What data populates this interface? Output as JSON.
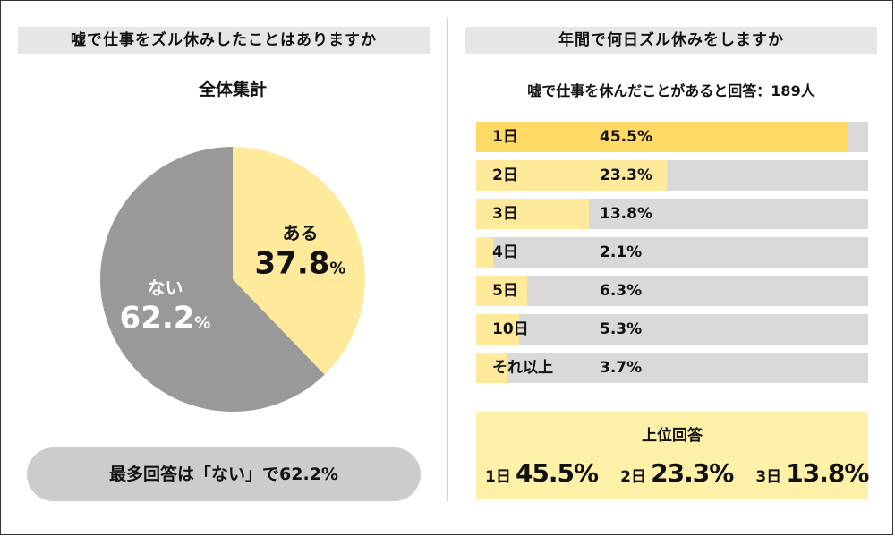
{
  "left_panel": {
    "header": "嘘で仕事をズル休みしたことはありますか",
    "subtitle": "全体集計",
    "summary": "最多回答は「ない」で62.2%"
  },
  "right_panel": {
    "header": "年間で何日ズル休みをしますか",
    "subtitle": "嘘で仕事を休んだことがあると回答：189人",
    "top_answers": {
      "title": "上位回答",
      "items": [
        {
          "day": "1日",
          "pct": "45.5%"
        },
        {
          "day": "2日",
          "pct": "23.3%"
        },
        {
          "day": "3日",
          "pct": "13.8%"
        }
      ]
    }
  },
  "colors": {
    "yes": "#ffe99b",
    "no": "#999999",
    "bar_top": "#ffd966",
    "bar_bg": "#d9d9d9"
  },
  "chart_data": [
    {
      "type": "pie",
      "title": "全体集計",
      "slices": [
        {
          "label": "ある",
          "value": 37.8,
          "display": "37.8",
          "unit": "%"
        },
        {
          "label": "ない",
          "value": 62.2,
          "display": "62.2",
          "unit": "%"
        }
      ]
    },
    {
      "type": "bar",
      "orientation": "horizontal",
      "title": "年間で何日ズル休みをしますか",
      "categories": [
        "1日",
        "2日",
        "3日",
        "4日",
        "5日",
        "10日",
        "それ以上"
      ],
      "values": [
        45.5,
        23.3,
        13.8,
        2.1,
        6.3,
        5.3,
        3.7
      ],
      "labels": [
        "45.5%",
        "23.3%",
        "13.8%",
        "2.1%",
        "6.3%",
        "5.3%",
        "3.7%"
      ],
      "xlim": [
        0,
        48
      ]
    }
  ]
}
